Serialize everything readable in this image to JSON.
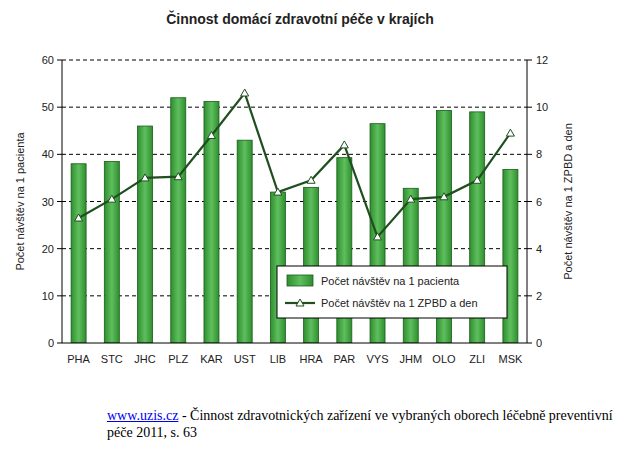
{
  "chart_data": {
    "type": "bar",
    "title": "Činnost domácí zdravotní péče v krajích",
    "y_label": "Počet návštěv na 1 pacienta",
    "y2_label": "Počet návštěv na 1 ZPBD a den",
    "categories": [
      "PHA",
      "STC",
      "JHC",
      "PLZ",
      "KAR",
      "UST",
      "LIB",
      "HRA",
      "PAR",
      "VYS",
      "JHM",
      "OLO",
      "ZLI",
      "MSK"
    ],
    "series": [
      {
        "name": "Počet návštěv na 1 pacienta",
        "type": "bar",
        "color": "#2f8f2f",
        "values": [
          38,
          38.5,
          46,
          52,
          51.2,
          43,
          32,
          33,
          39.3,
          46.5,
          32.8,
          49.3,
          49,
          36.8
        ]
      },
      {
        "name": "Počet návštěv na 1 ZPBD a den",
        "type": "line",
        "color": "#1f4f1f",
        "marker": "triangle",
        "axis": "y2",
        "values": [
          5.3,
          6.1,
          7.0,
          7.05,
          8.8,
          10.6,
          6.4,
          6.9,
          8.4,
          4.5,
          6.1,
          6.2,
          6.9,
          8.9
        ]
      }
    ],
    "ylim": [
      0,
      60
    ],
    "yticks": [
      0,
      10,
      20,
      30,
      40,
      50,
      60
    ],
    "y2lim": [
      0,
      12
    ],
    "y2ticks": [
      0,
      2,
      4,
      6,
      8,
      10,
      12
    ],
    "grid": true,
    "legend": "lower right"
  },
  "source": {
    "link": "www.uzis.cz",
    "text": " - Činnost zdravotnických zařízení ve vybraných oborech léčebně preventivní péče 2011, s. 63"
  }
}
